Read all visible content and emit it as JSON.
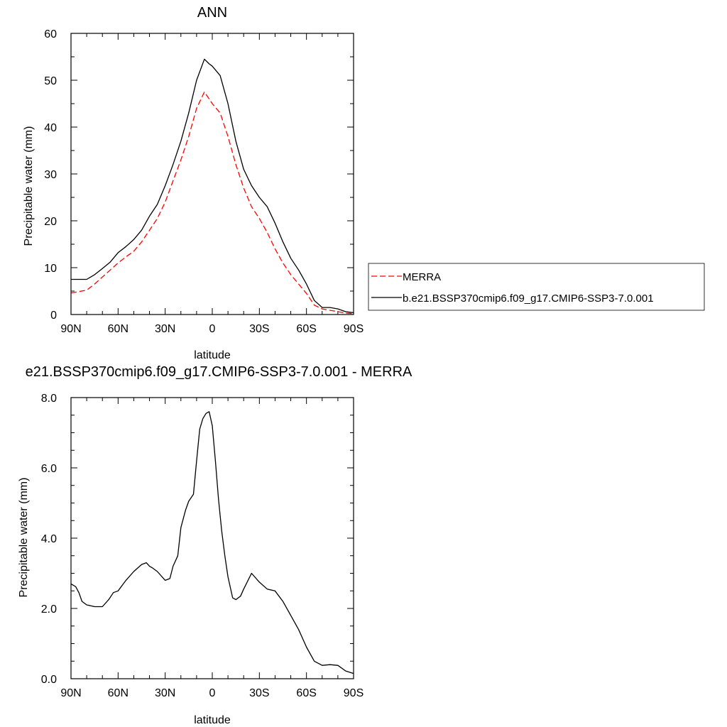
{
  "chart_data": [
    {
      "type": "line",
      "title": "ANN",
      "xlabel": "latitude",
      "ylabel": "Precipitable water (mm)",
      "xlim": [
        90,
        -90
      ],
      "ylim": [
        0,
        60
      ],
      "x_ticks": [
        90,
        60,
        30,
        0,
        -30,
        -60,
        -90
      ],
      "x_tick_labels": [
        "90N",
        "60N",
        "30N",
        "0",
        "30S",
        "60S",
        "90S"
      ],
      "y_ticks": [
        0,
        10,
        20,
        30,
        40,
        50,
        60
      ],
      "y_tick_labels": [
        "0",
        "10",
        "20",
        "30",
        "40",
        "50",
        "60"
      ],
      "legend_position": "right",
      "x": [
        90,
        85,
        80,
        75,
        70,
        65,
        60,
        55,
        50,
        45,
        40,
        35,
        30,
        25,
        20,
        15,
        10,
        5,
        2,
        0,
        -5,
        -10,
        -15,
        -20,
        -25,
        -30,
        -35,
        -40,
        -45,
        -50,
        -55,
        -60,
        -65,
        -70,
        -75,
        -80,
        -85,
        -90
      ],
      "series": [
        {
          "name": "MERRA",
          "color": "#ff0000",
          "dash": "dashed",
          "values": [
            4.6,
            4.9,
            5.2,
            6.5,
            8.0,
            9.5,
            11.0,
            12.3,
            13.5,
            15.5,
            18.0,
            20.5,
            24.0,
            28.5,
            33.0,
            38.0,
            44.0,
            47.5,
            46.0,
            45.0,
            43.0,
            38.0,
            32.0,
            27.0,
            23.0,
            20.5,
            17.5,
            14.0,
            11.0,
            8.5,
            6.5,
            4.5,
            2.0,
            1.2,
            0.9,
            0.6,
            0.3,
            0.2
          ]
        },
        {
          "name": "b.e21.BSSP370cmip6.f09_g17.CMIP6-SSP3-7.0.001",
          "color": "#000000",
          "dash": "solid",
          "values": [
            7.5,
            7.5,
            7.5,
            8.5,
            9.8,
            11.2,
            13.2,
            14.5,
            16.0,
            18.0,
            21.0,
            23.5,
            27.5,
            32.0,
            37.0,
            43.0,
            50.0,
            54.5,
            53.5,
            53.0,
            51.0,
            45.0,
            37.0,
            31.0,
            27.5,
            25.0,
            23.0,
            19.5,
            15.5,
            12.0,
            9.5,
            6.5,
            3.0,
            1.5,
            1.5,
            1.2,
            0.6,
            0.4
          ]
        }
      ]
    },
    {
      "type": "line",
      "title": "e21.BSSP370cmip6.f09_g17.CMIP6-SSP3-7.0.001 - MERRA",
      "xlabel": "latitude",
      "ylabel": "Precipitable water (mm)",
      "xlim": [
        90,
        -90
      ],
      "ylim": [
        0,
        8
      ],
      "x_ticks": [
        90,
        60,
        30,
        0,
        -30,
        -60,
        -90
      ],
      "x_tick_labels": [
        "90N",
        "60N",
        "30N",
        "0",
        "30S",
        "60S",
        "90S"
      ],
      "y_ticks": [
        0,
        2,
        4,
        6,
        8
      ],
      "y_tick_labels": [
        "0.0",
        "2.0",
        "4.0",
        "6.0",
        "8.0"
      ],
      "x": [
        90,
        87,
        85,
        83,
        80,
        75,
        70,
        66,
        63,
        60,
        55,
        50,
        45,
        42,
        40,
        38,
        35,
        30,
        27,
        25,
        22,
        20,
        17,
        15,
        12,
        10,
        8,
        6,
        4,
        2,
        0,
        -2,
        -4,
        -6,
        -8,
        -10,
        -13,
        -15,
        -18,
        -20,
        -25,
        -30,
        -35,
        -40,
        -45,
        -50,
        -55,
        -60,
        -65,
        -70,
        -75,
        -80,
        -85,
        -90
      ],
      "series": [
        {
          "color": "#000000",
          "dash": "solid",
          "values": [
            2.7,
            2.62,
            2.45,
            2.2,
            2.1,
            2.05,
            2.05,
            2.25,
            2.45,
            2.5,
            2.8,
            3.05,
            3.25,
            3.3,
            3.2,
            3.15,
            3.05,
            2.8,
            2.85,
            3.2,
            3.5,
            4.3,
            4.8,
            5.05,
            5.25,
            6.2,
            7.1,
            7.4,
            7.55,
            7.6,
            7.2,
            6.2,
            5.1,
            4.2,
            3.5,
            2.9,
            2.3,
            2.25,
            2.35,
            2.55,
            3.0,
            2.75,
            2.55,
            2.5,
            2.2,
            1.8,
            1.4,
            0.9,
            0.5,
            0.38,
            0.4,
            0.38,
            0.22,
            0.15
          ]
        }
      ]
    }
  ],
  "legend": {
    "items": [
      {
        "label": "MERRA",
        "color": "#ff0000",
        "dash": "dashed"
      },
      {
        "label": "b.e21.BSSP370cmip6.f09_g17.CMIP6-SSP3-7.0.001",
        "color": "#000000",
        "dash": "solid"
      }
    ]
  }
}
